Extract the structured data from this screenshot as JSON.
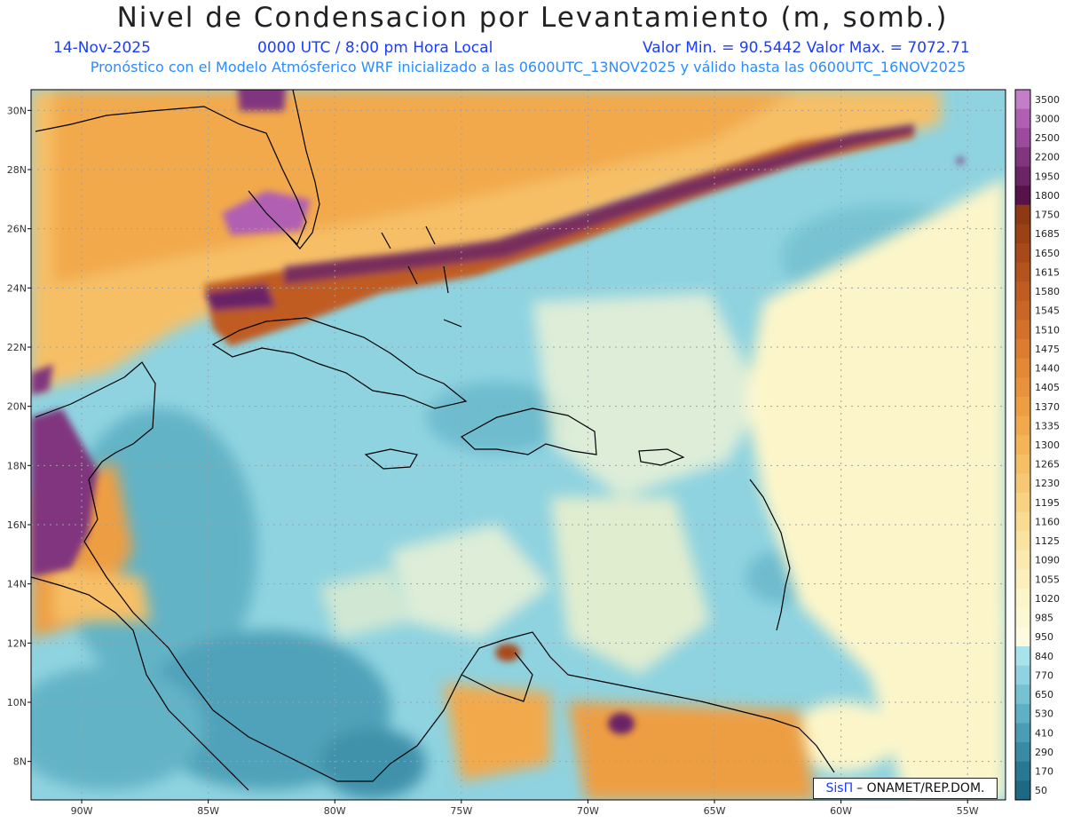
{
  "title": "Nivel de Condensacion por Levantamiento (m, somb.)",
  "date": "14-Nov-2025",
  "time": "0000 UTC / 8:00 pm Hora Local",
  "minmax": "Valor Min. = 90.5442   Valor Max. = 7072.71",
  "subtitle": "Pronóstico con el Modelo Atmósferico WRF inicializado a las 0600UTC_13NOV2025 y válido hasta las  0600UTC_16NOV2025",
  "credit": {
    "brand": "SisΠ",
    "text": "– ONAMET/REP.DOM."
  },
  "map": {
    "lat_labels": [
      "30N",
      "28N",
      "26N",
      "24N",
      "22N",
      "20N",
      "18N",
      "16N",
      "14N",
      "12N",
      "10N",
      "8N"
    ],
    "lon_labels": [
      "90W",
      "85W",
      "80W",
      "75W",
      "70W",
      "65W",
      "60W",
      "55W"
    ],
    "lat_range": [
      6.7,
      30.7
    ],
    "lon_range": [
      -92,
      -53.5
    ],
    "grid": true
  },
  "legend": {
    "levels": [
      "3500",
      "3000",
      "2500",
      "2200",
      "1950",
      "1800",
      "1750",
      "1685",
      "1650",
      "1615",
      "1580",
      "1545",
      "1510",
      "1475",
      "1440",
      "1405",
      "1370",
      "1335",
      "1300",
      "1265",
      "1230",
      "1195",
      "1160",
      "1125",
      "1090",
      "1055",
      "1020",
      "985",
      "950",
      "840",
      "770",
      "650",
      "530",
      "410",
      "290",
      "170",
      "50"
    ],
    "colors": [
      "#c27ec6",
      "#b05fb3",
      "#9b4a9c",
      "#80357e",
      "#6b2466",
      "#571349",
      "#8c3914",
      "#9a4115",
      "#a9491a",
      "#b5531d",
      "#c05c22",
      "#c96626",
      "#d3712b",
      "#dc7c30",
      "#e38835",
      "#e9923b",
      "#ee9e42",
      "#f2a94c",
      "#f4b458",
      "#f6bf66",
      "#f7c874",
      "#f8d283",
      "#f9db92",
      "#faE3a1",
      "#fbeab0",
      "#fbf0bd",
      "#fcf5c9",
      "#fdf8d4",
      "#fdfadf",
      "#a8e3ec",
      "#8fd3e0",
      "#76c2d2",
      "#5fb0c4",
      "#4a9db5",
      "#388aa5",
      "#287894",
      "#1d6883"
    ]
  },
  "colors": {
    "sea": "#8fd3e0",
    "coast": "#000000",
    "text_blue": "#1a3cff",
    "subtitle": "#2a8cff"
  }
}
